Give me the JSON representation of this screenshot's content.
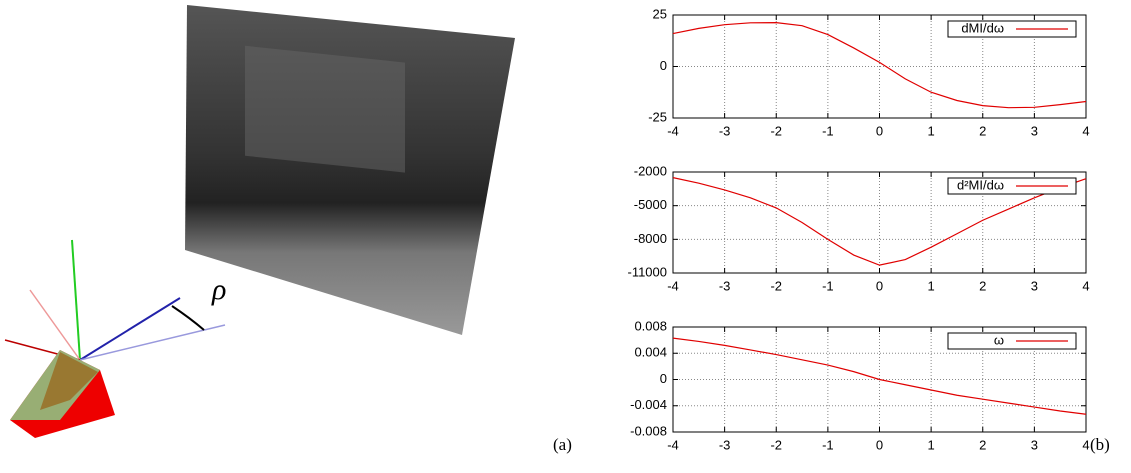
{
  "chart_data": [
    {
      "type": "line",
      "x": [
        -4,
        -3.5,
        -3,
        -2.5,
        -2,
        -1.5,
        -1,
        -0.5,
        0,
        0.5,
        1,
        1.5,
        2,
        2.5,
        3,
        3.5,
        4
      ],
      "series": [
        {
          "name": "dMI/dω",
          "color": "#e00000",
          "values": [
            16,
            18.5,
            20.3,
            21.2,
            21.3,
            19.8,
            15.5,
            9,
            2,
            -6,
            -12.5,
            -16.5,
            -19,
            -20,
            -19.8,
            -18.5,
            -17
          ]
        }
      ],
      "xlim": [
        -4,
        4
      ],
      "ylim": [
        -25,
        25
      ],
      "xticks": [
        -4,
        -3,
        -2,
        -1,
        0,
        1,
        2,
        3,
        4
      ],
      "yticks": [
        -25,
        0,
        25
      ],
      "grid": true,
      "legend": "upper right"
    },
    {
      "type": "line",
      "x": [
        -4,
        -3.5,
        -3,
        -2.5,
        -2,
        -1.5,
        -1,
        -0.5,
        0,
        0.5,
        1,
        1.5,
        2,
        2.5,
        3,
        3.5,
        4
      ],
      "series": [
        {
          "name": "d²MI/dω",
          "color": "#e00000",
          "values": [
            -2500,
            -3000,
            -3600,
            -4300,
            -5200,
            -6500,
            -8000,
            -9400,
            -10300,
            -9800,
            -8700,
            -7500,
            -6300,
            -5300,
            -4300,
            -3400,
            -2600
          ]
        }
      ],
      "xlim": [
        -4,
        4
      ],
      "ylim": [
        -11000,
        -2000
      ],
      "xticks": [
        -4,
        -3,
        -2,
        -1,
        0,
        1,
        2,
        3,
        4
      ],
      "yticks": [
        -2000,
        -5000,
        -8000,
        -11000
      ],
      "grid": true,
      "legend": "upper right"
    },
    {
      "type": "line",
      "x": [
        -4,
        -3.5,
        -3,
        -2.5,
        -2,
        -1.5,
        -1,
        -0.5,
        0,
        0.5,
        1,
        1.5,
        2,
        2.5,
        3,
        3.5,
        4
      ],
      "series": [
        {
          "name": "ω",
          "color": "#e00000",
          "values": [
            0.0063,
            0.0058,
            0.0052,
            0.0045,
            0.0038,
            0.003,
            0.0022,
            0.0012,
            0,
            -0.0008,
            -0.0016,
            -0.0024,
            -0.003,
            -0.0036,
            -0.0042,
            -0.0048,
            -0.0053
          ]
        }
      ],
      "xlim": [
        -4,
        4
      ],
      "ylim": [
        -0.008,
        0.008
      ],
      "xticks": [
        -4,
        -3,
        -2,
        -1,
        0,
        1,
        2,
        3,
        4
      ],
      "yticks": [
        -0.008,
        -0.004,
        0,
        0.004,
        0.008
      ],
      "grid": true,
      "legend": "upper right"
    }
  ],
  "panel_labels": [
    "(a)",
    "(b)"
  ],
  "rotation_label": "ρ"
}
